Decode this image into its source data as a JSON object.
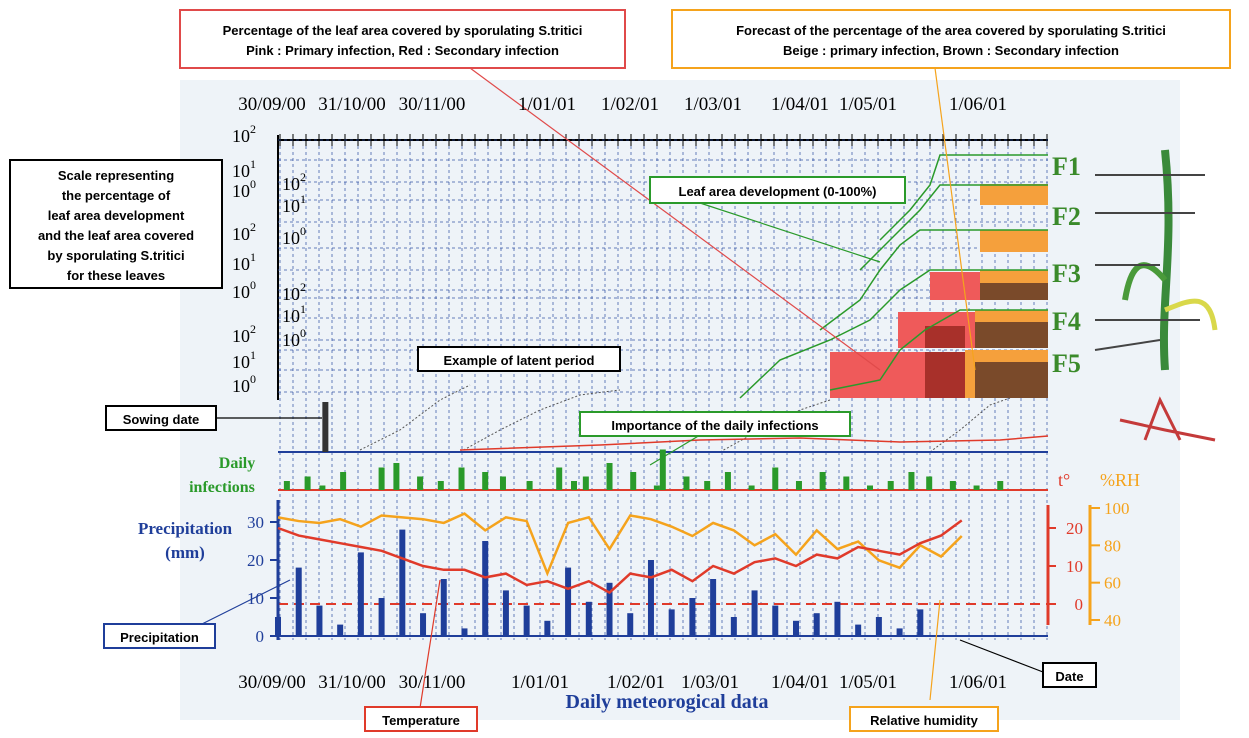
{
  "annotations": {
    "percentage_box": [
      "Percentage of the leaf area covered by sporulating S.tritici",
      "Pink : Primary infection, Red : Secondary infection"
    ],
    "forecast_box": [
      "Forecast of the percentage of the area covered by sporulating S.tritici",
      "Beige : primary infection, Brown : Secondary infection"
    ],
    "scale_box": [
      "Scale representing",
      "the percentage of",
      "leaf area development",
      "and the leaf area covered",
      "by sporulating S.tritici",
      "for these leaves"
    ],
    "leaf_area": "Leaf area development (0-100%)",
    "latent_period": "Example of latent period",
    "sowing_date": "Sowing date",
    "infections_box": "Importance of the daily infections",
    "precipitation_box": "Precipitation",
    "temperature_box": "Temperature",
    "humidity_box": "Relative humidity",
    "date_box": "Date"
  },
  "dates": [
    "30/09/00",
    "31/10/00",
    "30/11/00",
    "1/01/01",
    "1/02/01",
    "1/03/01",
    "1/04/01",
    "1/05/01",
    "1/06/01"
  ],
  "leaves": [
    "F1",
    "F2",
    "F3",
    "F4",
    "F5"
  ],
  "log_ticks": [
    {
      "base": "10",
      "exponent": "2"
    },
    {
      "base": "10",
      "exponent": "1"
    },
    {
      "base": "10",
      "exponent": "0"
    }
  ],
  "sowing_day": 16,
  "infections": {
    "label": [
      "Daily",
      "infections"
    ],
    "x": [
      3,
      10,
      15,
      22,
      35,
      40,
      48,
      55,
      62,
      70,
      76,
      85,
      95,
      100,
      104,
      112,
      120,
      128,
      130,
      138,
      145,
      152,
      160,
      168,
      176,
      184,
      192,
      200,
      207,
      214,
      220,
      228,
      236,
      244
    ],
    "values": [
      2,
      3,
      1,
      4,
      5,
      6,
      3,
      2,
      5,
      4,
      3,
      2,
      5,
      2,
      3,
      6,
      4,
      1,
      9,
      3,
      2,
      4,
      1,
      5,
      2,
      4,
      3,
      1,
      2,
      4,
      3,
      2,
      1,
      2
    ]
  },
  "weather": {
    "title": "Daily meteorogical data",
    "x": [
      0,
      7,
      14,
      21,
      28,
      35,
      42,
      49,
      56,
      63,
      70,
      77,
      84,
      91,
      98,
      105,
      112,
      119,
      126,
      133,
      140,
      147,
      154,
      161,
      168,
      175,
      182,
      189,
      196,
      203,
      210,
      217,
      224,
      231
    ],
    "precipitation": {
      "label": [
        "Precipitation",
        "(mm)"
      ],
      "ylim": [
        0,
        30
      ],
      "yticks": [
        0,
        10,
        20,
        30
      ],
      "color": "#1f3e9a",
      "values": [
        5,
        18,
        8,
        3,
        22,
        10,
        28,
        6,
        15,
        2,
        25,
        12,
        8,
        4,
        18,
        9,
        14,
        6,
        20,
        7,
        10,
        15,
        5,
        12,
        8,
        4,
        6,
        9,
        3,
        5,
        2,
        7,
        0,
        0
      ]
    },
    "temperature": {
      "label": "t°",
      "ylim": [
        -8,
        24
      ],
      "yticks": [
        0,
        10,
        20
      ],
      "color": "#e03a2a",
      "values": [
        20,
        18,
        17,
        16,
        15,
        14,
        12,
        10,
        9,
        9,
        7,
        8,
        5,
        6,
        4,
        6,
        3,
        8,
        7,
        9,
        6,
        10,
        8,
        11,
        12,
        10,
        13,
        12,
        15,
        14,
        13,
        16,
        18,
        22
      ]
    },
    "humidity": {
      "label": "%RH",
      "ylim": [
        40,
        100
      ],
      "yticks": [
        40,
        60,
        80,
        100
      ],
      "color": "#f5a31c",
      "values": [
        95,
        93,
        92,
        94,
        90,
        96,
        95,
        94,
        92,
        97,
        88,
        95,
        93,
        65,
        92,
        95,
        78,
        96,
        94,
        90,
        85,
        92,
        88,
        80,
        86,
        75,
        88,
        78,
        82,
        72,
        68,
        80,
        74,
        85
      ]
    }
  }
}
